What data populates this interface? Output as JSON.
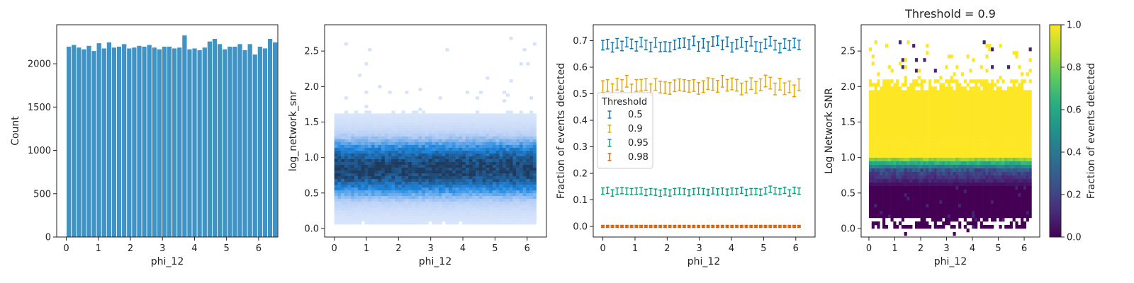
{
  "colors": {
    "hist_bar": "#3f93c5",
    "hist2d_dark": "#1f3a5c",
    "hist2d_mid": "#1f88e0",
    "hist2d_light": "#b7cff6",
    "threshold_0_5": "#0072b2",
    "threshold_0_9": "#e69f00",
    "threshold_0_95": "#009e73",
    "threshold_0_98": "#d55e00"
  },
  "chart_data": [
    {
      "type": "bar",
      "xlabel": "phi_12",
      "ylabel": "Count",
      "xlim": [
        -0.3,
        6.6
      ],
      "ylim": [
        0,
        2450
      ],
      "xticks": [
        "0",
        "1",
        "2",
        "3",
        "4",
        "5",
        "6"
      ],
      "yticks": [
        "0",
        "500",
        "1000",
        "1500",
        "2000"
      ],
      "bin_width": 0.157,
      "values": [
        2200,
        2220,
        2190,
        2170,
        2210,
        2150,
        2240,
        2180,
        2250,
        2190,
        2200,
        2230,
        2180,
        2190,
        2210,
        2200,
        2220,
        2190,
        2170,
        2200,
        2200,
        2180,
        2190,
        2330,
        2170,
        2180,
        2160,
        2190,
        2260,
        2290,
        2230,
        2170,
        2200,
        2200,
        2230,
        2160,
        2230,
        2110,
        2200,
        2180,
        2290,
        2250
      ]
    },
    {
      "type": "heatmap",
      "xlabel": "phi_12",
      "ylabel": "log_network_snr",
      "xlim": [
        -0.3,
        6.6
      ],
      "ylim": [
        -0.12,
        2.87
      ],
      "xticks": [
        "0",
        "1",
        "2",
        "3",
        "4",
        "5",
        "6"
      ],
      "yticks": [
        "0.0",
        "0.5",
        "1.0",
        "1.5",
        "2.0",
        "2.5"
      ],
      "description_values": {
        "density_center": 0.85,
        "core_halfwidth": 0.35,
        "extent_low": 0.0,
        "extent_high": 2.2
      }
    },
    {
      "type": "scatter",
      "xlabel": "phi_12",
      "ylabel": "Fraction of events detected",
      "xlim": [
        -0.3,
        6.6
      ],
      "ylim": [
        -0.04,
        0.76
      ],
      "xticks": [
        "0",
        "1",
        "2",
        "3",
        "4",
        "5",
        "6"
      ],
      "yticks": [
        "0.0",
        "0.1",
        "0.2",
        "0.3",
        "0.4",
        "0.5",
        "0.6",
        "0.7"
      ],
      "legend_title": "Threshold",
      "legend_position": "left",
      "series": [
        {
          "name": "0.5",
          "color_key": "threshold_0_5",
          "error": 0.018,
          "values": [
            0.683,
            0.687,
            0.675,
            0.69,
            0.68,
            0.695,
            0.688,
            0.679,
            0.695,
            0.684,
            0.676,
            0.693,
            0.676,
            0.678,
            0.676,
            0.684,
            0.69,
            0.692,
            0.686,
            0.699,
            0.678,
            0.69,
            0.678,
            0.697,
            0.7,
            0.684,
            0.696,
            0.675,
            0.687,
            0.693,
            0.679,
            0.698,
            0.678,
            0.675,
            0.688,
            0.698,
            0.683,
            0.672,
            0.689,
            0.682,
            0.691,
            0.684
          ]
        },
        {
          "name": "0.9",
          "color_key": "threshold_0_9",
          "error": 0.022,
          "values": [
            0.527,
            0.531,
            0.515,
            0.536,
            0.531,
            0.547,
            0.514,
            0.531,
            0.532,
            0.535,
            0.515,
            0.535,
            0.525,
            0.523,
            0.52,
            0.53,
            0.534,
            0.531,
            0.528,
            0.531,
            0.52,
            0.527,
            0.538,
            0.535,
            0.528,
            0.547,
            0.532,
            0.537,
            0.532,
            0.518,
            0.525,
            0.538,
            0.524,
            0.534,
            0.548,
            0.54,
            0.518,
            0.536,
            0.519,
            0.526,
            0.511,
            0.534
          ]
        },
        {
          "name": "0.95",
          "color_key": "threshold_0_95",
          "error": 0.012,
          "values": [
            0.133,
            0.136,
            0.126,
            0.133,
            0.135,
            0.133,
            0.131,
            0.133,
            0.134,
            0.128,
            0.131,
            0.129,
            0.125,
            0.13,
            0.126,
            0.131,
            0.133,
            0.131,
            0.127,
            0.131,
            0.133,
            0.131,
            0.128,
            0.134,
            0.13,
            0.133,
            0.129,
            0.133,
            0.131,
            0.136,
            0.128,
            0.131,
            0.131,
            0.129,
            0.134,
            0.14,
            0.134,
            0.131,
            0.136,
            0.126,
            0.136,
            0.133
          ]
        },
        {
          "name": "0.98",
          "color_key": "threshold_0_98",
          "error": 0.004,
          "values": [
            0,
            0,
            0,
            0,
            0,
            0,
            0,
            0,
            0,
            0,
            0,
            0,
            0,
            0,
            0,
            0,
            0,
            0,
            0,
            0,
            0,
            0,
            0,
            0,
            0,
            0,
            0,
            0,
            0,
            0,
            0,
            0,
            0,
            0,
            0,
            0,
            0,
            0,
            0,
            0,
            0,
            0
          ]
        }
      ]
    },
    {
      "type": "heatmap",
      "title": "Threshold = 0.9",
      "xlabel": "phi_12",
      "ylabel": "Log Network SNR",
      "xlim": [
        -0.3,
        6.6
      ],
      "ylim": [
        -0.12,
        2.87
      ],
      "xticks": [
        "0",
        "1",
        "2",
        "3",
        "4",
        "5",
        "6"
      ],
      "yticks": [
        "0.0",
        "0.5",
        "1.0",
        "1.5",
        "2.0",
        "2.5"
      ],
      "colorbar_label": "Fraction of events detected",
      "colorbar_ticks": [
        "0.0",
        "0.2",
        "0.4",
        "0.6",
        "0.8",
        "1.0"
      ],
      "colormap": "viridis",
      "transition_snr": [
        0.85,
        1.0
      ]
    }
  ]
}
